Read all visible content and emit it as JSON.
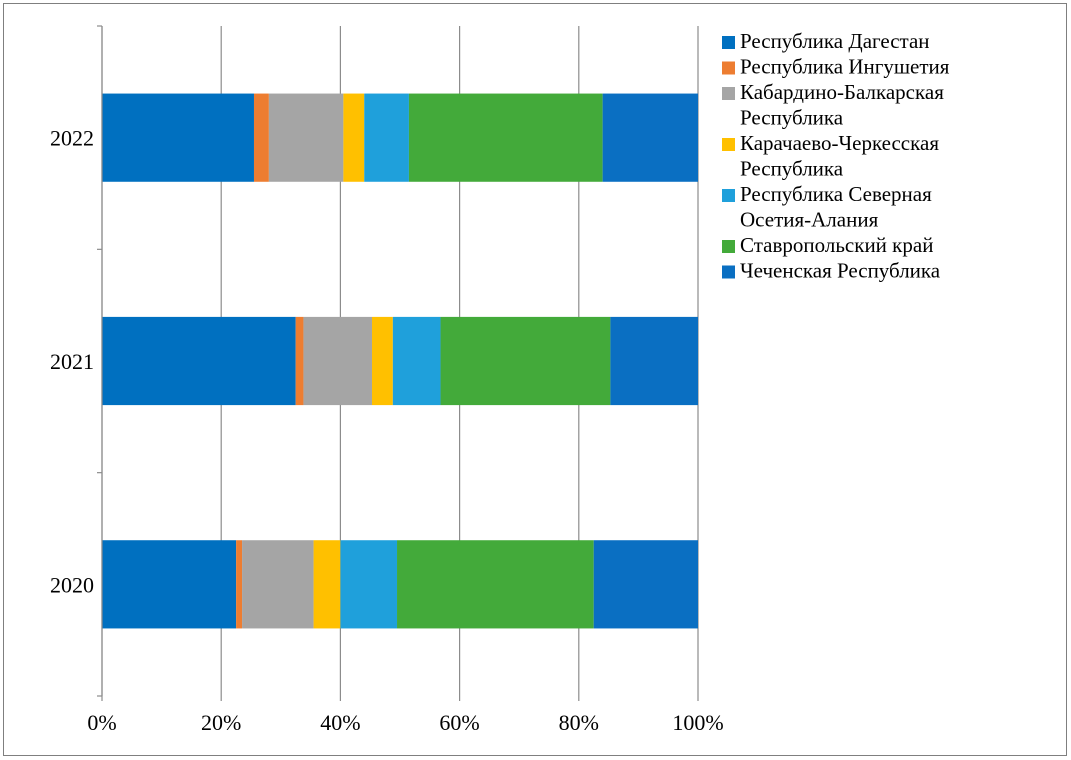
{
  "chart_data": {
    "type": "bar",
    "orientation": "horizontal",
    "stacked": "percent",
    "categories": [
      "2020",
      "2021",
      "2022"
    ],
    "series": [
      {
        "name": "Республика Дагестан",
        "color": "#0070C0",
        "values": [
          22.5,
          32.5,
          25.5
        ]
      },
      {
        "name": "Республика Ингушетия",
        "color": "#ED7D31",
        "values": [
          1.0,
          1.3,
          2.5
        ]
      },
      {
        "name": "Кабардино-Балкарская Республика",
        "color": "#A5A5A5",
        "values": [
          12.0,
          11.5,
          12.5
        ]
      },
      {
        "name": "Карачаево-Черкесская Республика",
        "color": "#FFC000",
        "values": [
          4.5,
          3.5,
          3.5
        ]
      },
      {
        "name": "Республика Северная Осетия-Алания",
        "color": "#1FA0DB",
        "values": [
          9.5,
          8.0,
          7.5
        ]
      },
      {
        "name": "Ставропольский край",
        "color": "#43AA3A",
        "values": [
          33.0,
          28.5,
          32.5
        ]
      },
      {
        "name": "Чеченская Республика",
        "color": "#0A6FC2",
        "values": [
          17.5,
          14.7,
          16.0
        ]
      }
    ],
    "xticks": [
      "0%",
      "20%",
      "40%",
      "60%",
      "80%",
      "100%"
    ],
    "xlim": [
      0,
      100
    ],
    "title": "",
    "xlabel": "",
    "ylabel": "",
    "grid": "vertical",
    "legend": "right"
  }
}
